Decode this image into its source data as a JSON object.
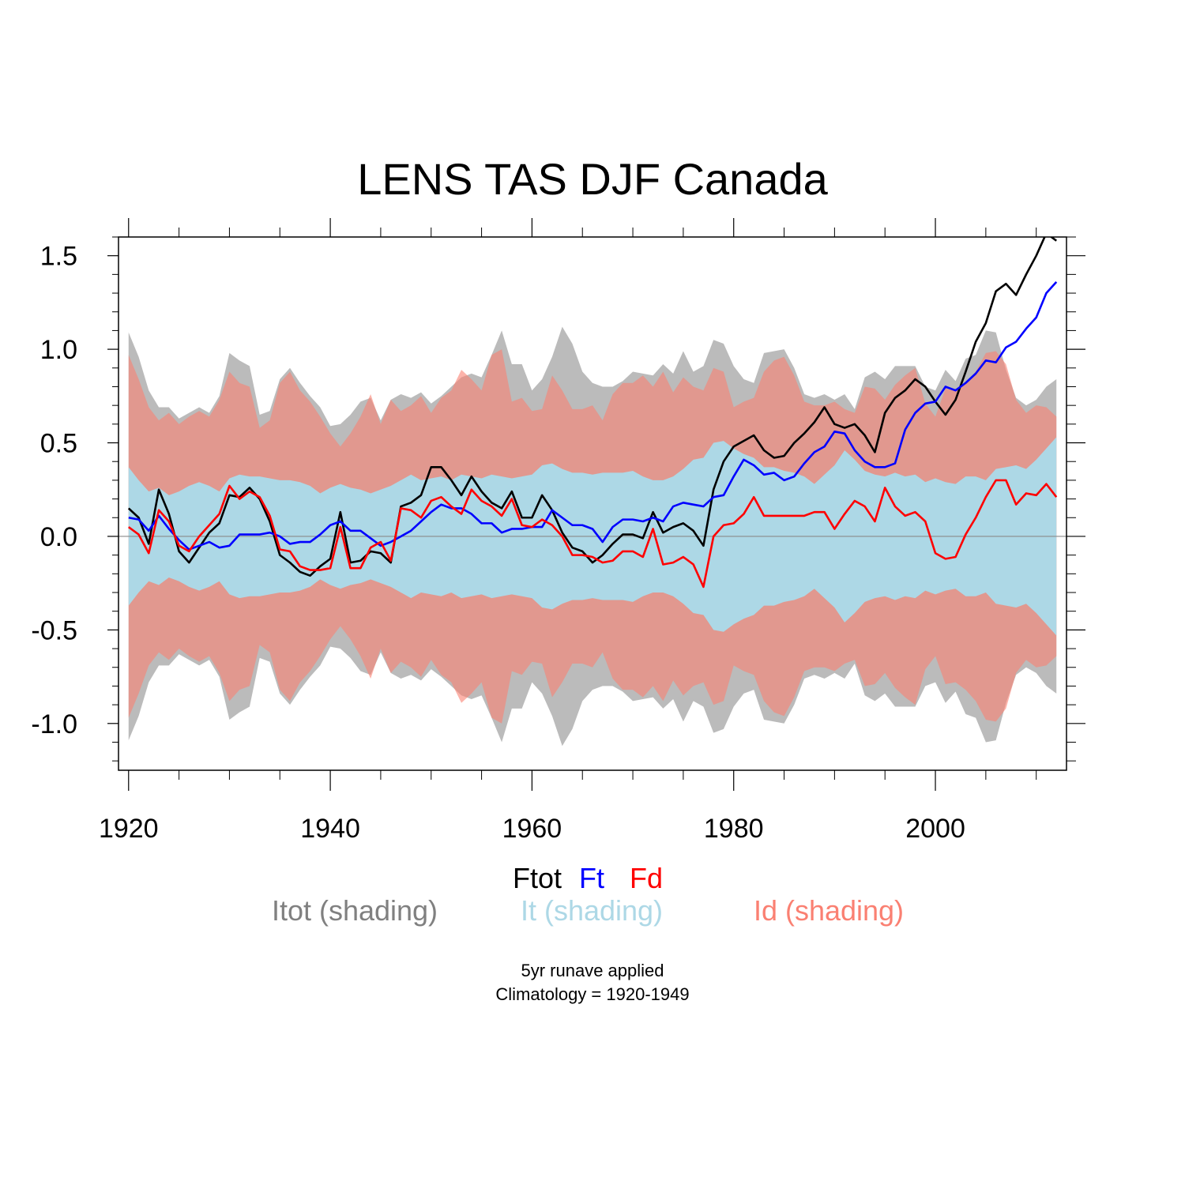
{
  "chart_data": {
    "type": "line",
    "title": "LENS TAS DJF Canada",
    "xlabel": "",
    "ylabel": "",
    "xlim": [
      1919,
      2013
    ],
    "ylim": [
      -1.25,
      1.6
    ],
    "x_ticks": [
      1920,
      1940,
      1960,
      1980,
      2000
    ],
    "y_ticks": [
      -1.0,
      -0.5,
      0.0,
      0.5,
      1.0,
      1.5
    ],
    "y_tick_labels": [
      "-1.0",
      "-0.5",
      "0.0",
      "0.5",
      "1.0",
      "1.5"
    ],
    "legend_lines": [
      {
        "label": "Ftot",
        "color": "#000000"
      },
      {
        "label": "Ft",
        "color": "#0000ff"
      },
      {
        "label": "Fd",
        "color": "#ff0000"
      }
    ],
    "legend_shading": [
      {
        "label": "Itot (shading)",
        "color": "#808080"
      },
      {
        "label": "It (shading)",
        "color": "#add8e6"
      },
      {
        "label": "Id (shading)",
        "color": "#fa8072"
      }
    ],
    "footnotes": [
      "5yr runave applied",
      "Climatology = 1920-1949"
    ],
    "x": [
      1920,
      1921,
      1922,
      1923,
      1924,
      1925,
      1926,
      1927,
      1928,
      1929,
      1930,
      1931,
      1932,
      1933,
      1934,
      1935,
      1936,
      1937,
      1938,
      1939,
      1940,
      1941,
      1942,
      1943,
      1944,
      1945,
      1946,
      1947,
      1948,
      1949,
      1950,
      1951,
      1952,
      1953,
      1954,
      1955,
      1956,
      1957,
      1958,
      1959,
      1960,
      1961,
      1962,
      1963,
      1964,
      1965,
      1966,
      1967,
      1968,
      1969,
      1970,
      1971,
      1972,
      1973,
      1974,
      1975,
      1976,
      1977,
      1978,
      1979,
      1980,
      1981,
      1982,
      1983,
      1984,
      1985,
      1986,
      1987,
      1988,
      1989,
      1990,
      1991,
      1992,
      1993,
      1994,
      1995,
      1996,
      1997,
      1998,
      1999,
      2000,
      2001,
      2002,
      2003,
      2004,
      2005,
      2006,
      2007,
      2008,
      2009,
      2010,
      2011,
      2012
    ],
    "series": [
      {
        "name": "Ftot",
        "color": "#000000",
        "values": [
          0.15,
          0.1,
          -0.04,
          0.25,
          0.12,
          -0.08,
          -0.14,
          -0.06,
          0.02,
          0.07,
          0.22,
          0.21,
          0.26,
          0.2,
          0.08,
          -0.1,
          -0.14,
          -0.19,
          -0.21,
          -0.16,
          -0.12,
          0.13,
          -0.14,
          -0.13,
          -0.08,
          -0.09,
          -0.14,
          0.16,
          0.18,
          0.22,
          0.37,
          0.37,
          0.3,
          0.22,
          0.32,
          0.24,
          0.18,
          0.15,
          0.24,
          0.1,
          0.1,
          0.22,
          0.14,
          0.02,
          -0.06,
          -0.08,
          -0.14,
          -0.1,
          -0.04,
          0.01,
          0.01,
          -0.01,
          0.13,
          0.02,
          0.05,
          0.07,
          0.03,
          -0.05,
          0.25,
          0.4,
          0.48,
          0.51,
          0.54,
          0.46,
          0.42,
          0.43,
          0.5,
          0.55,
          0.61,
          0.69,
          0.6,
          0.58,
          0.6,
          0.54,
          0.45,
          0.66,
          0.74,
          0.78,
          0.84,
          0.8,
          0.72,
          0.65,
          0.73,
          0.88,
          1.04,
          1.14,
          1.31,
          1.35,
          1.29,
          1.4,
          1.5,
          1.62,
          1.58
        ]
      },
      {
        "name": "Ft",
        "color": "#0000ff",
        "values": [
          0.1,
          0.09,
          0.03,
          0.11,
          0.04,
          -0.02,
          -0.07,
          -0.05,
          -0.03,
          -0.06,
          -0.05,
          0.01,
          0.01,
          0.01,
          0.02,
          0.0,
          -0.04,
          -0.03,
          -0.03,
          0.01,
          0.06,
          0.08,
          0.03,
          0.03,
          -0.01,
          -0.05,
          -0.03,
          0.0,
          0.03,
          0.08,
          0.13,
          0.17,
          0.15,
          0.15,
          0.12,
          0.07,
          0.07,
          0.02,
          0.04,
          0.04,
          0.05,
          0.05,
          0.14,
          0.1,
          0.06,
          0.06,
          0.04,
          -0.03,
          0.05,
          0.09,
          0.09,
          0.08,
          0.1,
          0.08,
          0.16,
          0.18,
          0.17,
          0.16,
          0.21,
          0.22,
          0.32,
          0.41,
          0.38,
          0.33,
          0.34,
          0.3,
          0.32,
          0.39,
          0.45,
          0.48,
          0.56,
          0.55,
          0.46,
          0.4,
          0.37,
          0.37,
          0.39,
          0.57,
          0.66,
          0.71,
          0.72,
          0.8,
          0.78,
          0.82,
          0.87,
          0.94,
          0.93,
          1.01,
          1.04,
          1.11,
          1.17,
          1.3,
          1.36
        ]
      },
      {
        "name": "Fd",
        "color": "#ff0000",
        "values": [
          0.05,
          0.01,
          -0.09,
          0.14,
          0.08,
          -0.05,
          -0.08,
          0.0,
          0.06,
          0.12,
          0.27,
          0.2,
          0.24,
          0.21,
          0.11,
          -0.07,
          -0.08,
          -0.16,
          -0.18,
          -0.18,
          -0.17,
          0.05,
          -0.17,
          -0.17,
          -0.06,
          -0.03,
          -0.13,
          0.15,
          0.14,
          0.1,
          0.19,
          0.21,
          0.16,
          0.12,
          0.25,
          0.19,
          0.16,
          0.11,
          0.2,
          0.06,
          0.05,
          0.09,
          0.06,
          0.0,
          -0.1,
          -0.1,
          -0.11,
          -0.14,
          -0.13,
          -0.08,
          -0.08,
          -0.11,
          0.04,
          -0.15,
          -0.14,
          -0.11,
          -0.15,
          -0.27,
          0.0,
          0.06,
          0.07,
          0.12,
          0.21,
          0.11,
          0.11,
          0.11,
          0.11,
          0.11,
          0.13,
          0.13,
          0.04,
          0.12,
          0.19,
          0.16,
          0.08,
          0.26,
          0.16,
          0.11,
          0.13,
          0.08,
          -0.09,
          -0.12,
          -0.11,
          0.01,
          0.1,
          0.21,
          0.3,
          0.3,
          0.17,
          0.23,
          0.22,
          0.28,
          0.21
        ]
      }
    ],
    "shading": [
      {
        "name": "Itot",
        "color": "#bbbbbb",
        "upper": [
          1.09,
          0.96,
          0.78,
          0.69,
          0.69,
          0.63,
          0.66,
          0.69,
          0.66,
          0.75,
          0.98,
          0.94,
          0.91,
          0.65,
          0.67,
          0.84,
          0.9,
          0.82,
          0.75,
          0.69,
          0.59,
          0.6,
          0.65,
          0.72,
          0.74,
          0.62,
          0.73,
          0.76,
          0.74,
          0.77,
          0.71,
          0.75,
          0.8,
          0.85,
          0.87,
          0.85,
          0.97,
          1.1,
          0.92,
          0.92,
          0.78,
          0.84,
          0.96,
          1.12,
          1.03,
          0.88,
          0.82,
          0.8,
          0.8,
          0.83,
          0.88,
          0.87,
          0.86,
          0.92,
          0.87,
          0.99,
          0.88,
          0.91,
          1.05,
          1.03,
          0.91,
          0.84,
          0.82,
          0.98,
          0.99,
          1.0,
          0.9,
          0.76,
          0.74,
          0.76,
          0.73,
          0.76,
          0.68,
          0.85,
          0.88,
          0.84,
          0.91,
          0.91,
          0.91,
          0.8,
          0.78,
          0.89,
          0.83,
          0.95,
          0.97,
          1.1,
          1.09,
          0.89,
          0.74,
          0.7,
          0.73,
          0.8,
          0.84
        ],
        "lower": [
          -1.09,
          -0.96,
          -0.78,
          -0.69,
          -0.69,
          -0.63,
          -0.66,
          -0.69,
          -0.66,
          -0.75,
          -0.98,
          -0.94,
          -0.91,
          -0.65,
          -0.67,
          -0.84,
          -0.9,
          -0.82,
          -0.75,
          -0.69,
          -0.59,
          -0.6,
          -0.65,
          -0.72,
          -0.74,
          -0.62,
          -0.73,
          -0.76,
          -0.74,
          -0.77,
          -0.71,
          -0.75,
          -0.8,
          -0.85,
          -0.87,
          -0.85,
          -0.97,
          -1.1,
          -0.92,
          -0.92,
          -0.78,
          -0.84,
          -0.96,
          -1.12,
          -1.03,
          -0.88,
          -0.82,
          -0.8,
          -0.8,
          -0.83,
          -0.88,
          -0.87,
          -0.86,
          -0.92,
          -0.87,
          -0.99,
          -0.88,
          -0.91,
          -1.05,
          -1.03,
          -0.91,
          -0.84,
          -0.82,
          -0.98,
          -0.99,
          -1.0,
          -0.9,
          -0.76,
          -0.74,
          -0.76,
          -0.73,
          -0.76,
          -0.68,
          -0.85,
          -0.88,
          -0.84,
          -0.91,
          -0.91,
          -0.91,
          -0.8,
          -0.78,
          -0.89,
          -0.83,
          -0.95,
          -0.97,
          -1.1,
          -1.09,
          -0.89,
          -0.74,
          -0.7,
          -0.73,
          -0.8,
          -0.84
        ]
      },
      {
        "name": "Id",
        "color": "#fa8072",
        "upper": [
          0.97,
          0.84,
          0.69,
          0.62,
          0.66,
          0.6,
          0.64,
          0.67,
          0.64,
          0.73,
          0.88,
          0.82,
          0.8,
          0.58,
          0.62,
          0.82,
          0.88,
          0.78,
          0.72,
          0.64,
          0.55,
          0.48,
          0.55,
          0.64,
          0.76,
          0.6,
          0.73,
          0.67,
          0.7,
          0.75,
          0.66,
          0.74,
          0.78,
          0.89,
          0.84,
          0.78,
          0.97,
          1.0,
          0.72,
          0.74,
          0.67,
          0.68,
          0.86,
          0.78,
          0.68,
          0.68,
          0.7,
          0.62,
          0.76,
          0.82,
          0.82,
          0.86,
          0.8,
          0.88,
          0.77,
          0.85,
          0.8,
          0.78,
          0.9,
          0.88,
          0.69,
          0.72,
          0.74,
          0.88,
          0.94,
          0.96,
          0.86,
          0.72,
          0.7,
          0.7,
          0.72,
          0.68,
          0.66,
          0.8,
          0.79,
          0.73,
          0.81,
          0.86,
          0.9,
          0.71,
          0.64,
          0.79,
          0.78,
          0.82,
          0.88,
          0.98,
          0.99,
          0.92,
          0.73,
          0.66,
          0.7,
          0.69,
          0.64
        ],
        "lower": [
          -0.97,
          -0.84,
          -0.69,
          -0.62,
          -0.66,
          -0.6,
          -0.64,
          -0.67,
          -0.64,
          -0.73,
          -0.88,
          -0.82,
          -0.8,
          -0.58,
          -0.62,
          -0.82,
          -0.88,
          -0.78,
          -0.72,
          -0.64,
          -0.55,
          -0.48,
          -0.55,
          -0.64,
          -0.76,
          -0.6,
          -0.73,
          -0.67,
          -0.7,
          -0.75,
          -0.66,
          -0.74,
          -0.78,
          -0.89,
          -0.84,
          -0.78,
          -0.97,
          -1.0,
          -0.72,
          -0.74,
          -0.67,
          -0.68,
          -0.86,
          -0.78,
          -0.68,
          -0.68,
          -0.7,
          -0.62,
          -0.76,
          -0.82,
          -0.82,
          -0.86,
          -0.8,
          -0.88,
          -0.77,
          -0.85,
          -0.8,
          -0.78,
          -0.9,
          -0.88,
          -0.69,
          -0.72,
          -0.74,
          -0.88,
          -0.94,
          -0.96,
          -0.86,
          -0.72,
          -0.7,
          -0.7,
          -0.72,
          -0.68,
          -0.66,
          -0.8,
          -0.79,
          -0.73,
          -0.81,
          -0.86,
          -0.9,
          -0.71,
          -0.64,
          -0.79,
          -0.78,
          -0.82,
          -0.88,
          -0.98,
          -0.99,
          -0.92,
          -0.73,
          -0.66,
          -0.7,
          -0.69,
          -0.64
        ]
      },
      {
        "name": "It",
        "color": "#add8e6",
        "upper": [
          0.37,
          0.3,
          0.24,
          0.26,
          0.22,
          0.24,
          0.27,
          0.29,
          0.27,
          0.24,
          0.31,
          0.33,
          0.32,
          0.32,
          0.31,
          0.3,
          0.3,
          0.29,
          0.27,
          0.23,
          0.26,
          0.28,
          0.26,
          0.25,
          0.23,
          0.25,
          0.27,
          0.3,
          0.33,
          0.3,
          0.31,
          0.32,
          0.3,
          0.33,
          0.32,
          0.31,
          0.33,
          0.32,
          0.31,
          0.32,
          0.33,
          0.38,
          0.39,
          0.36,
          0.34,
          0.34,
          0.33,
          0.34,
          0.34,
          0.34,
          0.35,
          0.32,
          0.3,
          0.3,
          0.32,
          0.36,
          0.41,
          0.42,
          0.5,
          0.51,
          0.47,
          0.44,
          0.42,
          0.37,
          0.37,
          0.35,
          0.34,
          0.32,
          0.28,
          0.33,
          0.38,
          0.46,
          0.41,
          0.35,
          0.33,
          0.32,
          0.34,
          0.32,
          0.33,
          0.29,
          0.31,
          0.29,
          0.28,
          0.32,
          0.32,
          0.3,
          0.36,
          0.37,
          0.38,
          0.36,
          0.41,
          0.47,
          0.53
        ],
        "lower": [
          -0.37,
          -0.3,
          -0.24,
          -0.26,
          -0.22,
          -0.24,
          -0.27,
          -0.29,
          -0.27,
          -0.24,
          -0.31,
          -0.33,
          -0.32,
          -0.32,
          -0.31,
          -0.3,
          -0.3,
          -0.29,
          -0.27,
          -0.23,
          -0.26,
          -0.28,
          -0.26,
          -0.25,
          -0.23,
          -0.25,
          -0.27,
          -0.3,
          -0.33,
          -0.3,
          -0.31,
          -0.32,
          -0.3,
          -0.33,
          -0.32,
          -0.31,
          -0.33,
          -0.32,
          -0.31,
          -0.32,
          -0.33,
          -0.38,
          -0.39,
          -0.36,
          -0.34,
          -0.34,
          -0.33,
          -0.34,
          -0.34,
          -0.34,
          -0.35,
          -0.32,
          -0.3,
          -0.3,
          -0.32,
          -0.36,
          -0.41,
          -0.42,
          -0.5,
          -0.51,
          -0.47,
          -0.44,
          -0.42,
          -0.37,
          -0.37,
          -0.35,
          -0.34,
          -0.32,
          -0.28,
          -0.33,
          -0.38,
          -0.46,
          -0.41,
          -0.35,
          -0.33,
          -0.32,
          -0.34,
          -0.32,
          -0.33,
          -0.29,
          -0.31,
          -0.29,
          -0.28,
          -0.32,
          -0.32,
          -0.3,
          -0.36,
          -0.37,
          -0.38,
          -0.36,
          -0.41,
          -0.47,
          -0.53
        ]
      }
    ]
  }
}
